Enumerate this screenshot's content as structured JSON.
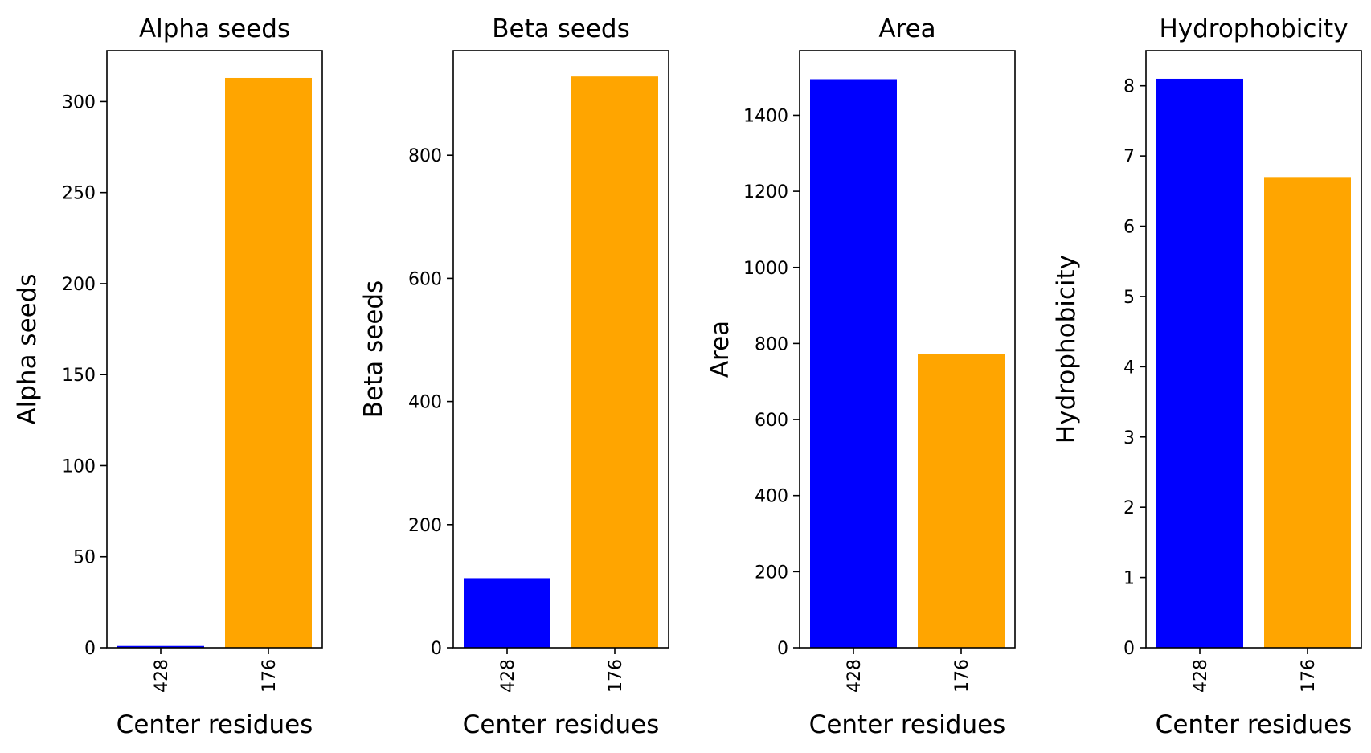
{
  "chart_data": [
    {
      "type": "bar",
      "title": "Alpha seeds",
      "xlabel": "Center residues",
      "ylabel": "Alpha seeds",
      "categories": [
        "428",
        "176"
      ],
      "values": [
        1,
        313
      ],
      "colors": [
        "#0000ff",
        "#ffa500"
      ],
      "ylim": [
        0,
        328
      ],
      "yticks": [
        0,
        50,
        100,
        150,
        200,
        250,
        300
      ],
      "ytick_labels": [
        "0",
        "50",
        "100",
        "150",
        "200",
        "250",
        "300"
      ],
      "grid": false,
      "legend": "none"
    },
    {
      "type": "bar",
      "title": "Beta seeds",
      "xlabel": "Center residues",
      "ylabel": "Beta seeds",
      "categories": [
        "428",
        "176"
      ],
      "values": [
        113,
        928
      ],
      "colors": [
        "#0000ff",
        "#ffa500"
      ],
      "ylim": [
        0,
        970
      ],
      "yticks": [
        0,
        200,
        400,
        600,
        800
      ],
      "ytick_labels": [
        "0",
        "200",
        "400",
        "600",
        "800"
      ],
      "grid": false,
      "legend": "none"
    },
    {
      "type": "bar",
      "title": "Area",
      "xlabel": "Center residues",
      "ylabel": "Area",
      "categories": [
        "428",
        "176"
      ],
      "values": [
        1495,
        773
      ],
      "colors": [
        "#0000ff",
        "#ffa500"
      ],
      "ylim": [
        0,
        1570
      ],
      "yticks": [
        0,
        200,
        400,
        600,
        800,
        1000,
        1200,
        1400
      ],
      "ytick_labels": [
        "0",
        "200",
        "400",
        "600",
        "800",
        "1000",
        "1200",
        "1400"
      ],
      "grid": false,
      "legend": "none"
    },
    {
      "type": "bar",
      "title": "Hydrophobicity",
      "xlabel": "Center residues",
      "ylabel": "Hydrophobicity",
      "categories": [
        "428",
        "176"
      ],
      "values": [
        8.1,
        6.7
      ],
      "colors": [
        "#0000ff",
        "#ffa500"
      ],
      "ylim": [
        0,
        8.5
      ],
      "yticks": [
        0,
        1,
        2,
        3,
        4,
        5,
        6,
        7,
        8
      ],
      "ytick_labels": [
        "0",
        "1",
        "2",
        "3",
        "4",
        "5",
        "6",
        "7",
        "8"
      ],
      "grid": false,
      "legend": "none"
    }
  ]
}
